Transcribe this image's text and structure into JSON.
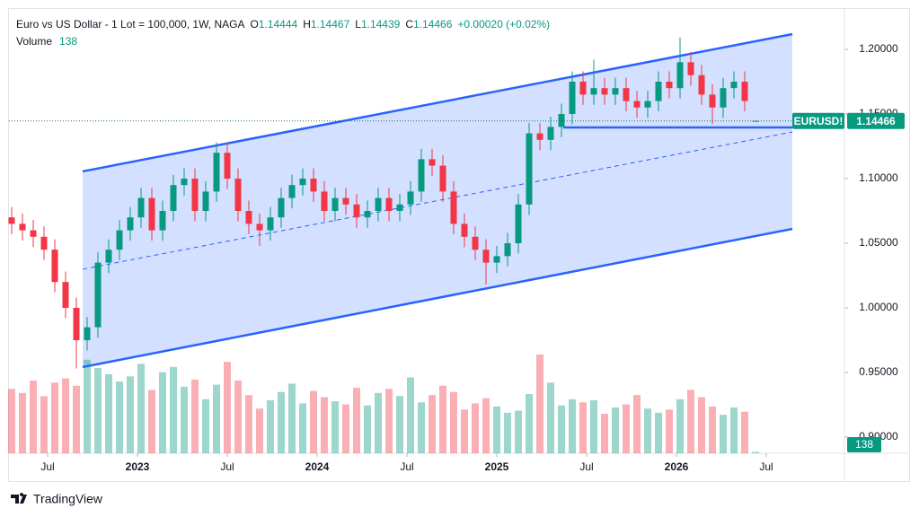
{
  "chart_data": {
    "type": "candlestick",
    "symbol": "Euro vs US Dollar - 1 Lot = 100,000, 1W, NAGA",
    "ohlc_labels": [
      "O",
      "H",
      "L",
      "C"
    ],
    "change": "+0.00020 (+0.02%)",
    "volume_label": "Volume",
    "tag": "EURUSD!",
    "up_color": "#089981",
    "down_color": "#f23645",
    "channel_color": "#2962ff",
    "x": [
      2022.3,
      2022.36,
      2022.42,
      2022.48,
      2022.54,
      2022.6,
      2022.66,
      2022.72,
      2022.78,
      2022.84,
      2022.9,
      2022.96,
      2023.02,
      2023.08,
      2023.14,
      2023.2,
      2023.26,
      2023.32,
      2023.38,
      2023.44,
      2023.5,
      2023.56,
      2023.62,
      2023.68,
      2023.74,
      2023.8,
      2023.86,
      2023.92,
      2023.98,
      2024.04,
      2024.1,
      2024.16,
      2024.22,
      2024.28,
      2024.34,
      2024.4,
      2024.46,
      2024.52,
      2024.58,
      2024.64,
      2024.7,
      2024.76,
      2024.82,
      2024.88,
      2024.94,
      2025.0,
      2025.06,
      2025.12,
      2025.18,
      2025.24,
      2025.3,
      2025.36,
      2025.42,
      2025.48,
      2025.54,
      2025.6,
      2025.66,
      2025.72,
      2025.78,
      2025.84,
      2025.9,
      2025.96,
      2026.02,
      2026.08,
      2026.14,
      2026.2,
      2026.26,
      2026.32,
      2026.38,
      2026.44
    ],
    "open": [
      1.07,
      1.065,
      1.06,
      1.055,
      1.045,
      1.02,
      1.0,
      0.975,
      0.985,
      1.035,
      1.045,
      1.06,
      1.07,
      1.085,
      1.06,
      1.075,
      1.095,
      1.1,
      1.075,
      1.09,
      1.12,
      1.1,
      1.075,
      1.065,
      1.06,
      1.07,
      1.085,
      1.095,
      1.1,
      1.09,
      1.075,
      1.085,
      1.08,
      1.07,
      1.075,
      1.085,
      1.075,
      1.08,
      1.09,
      1.115,
      1.11,
      1.09,
      1.065,
      1.055,
      1.045,
      1.035,
      1.04,
      1.05,
      1.08,
      1.135,
      1.13,
      1.14,
      1.15,
      1.175,
      1.165,
      1.17,
      1.165,
      1.17,
      1.16,
      1.155,
      1.16,
      1.175,
      1.17,
      1.19,
      1.18,
      1.165,
      1.155,
      1.17,
      1.175,
      1.14444
    ],
    "high": [
      1.078,
      1.073,
      1.068,
      1.063,
      1.053,
      1.028,
      1.008,
      0.993,
      1.043,
      1.053,
      1.068,
      1.078,
      1.093,
      1.093,
      1.083,
      1.103,
      1.108,
      1.108,
      1.098,
      1.128,
      1.128,
      1.108,
      1.083,
      1.073,
      1.078,
      1.093,
      1.103,
      1.108,
      1.108,
      1.098,
      1.093,
      1.093,
      1.088,
      1.083,
      1.093,
      1.093,
      1.088,
      1.098,
      1.123,
      1.123,
      1.118,
      1.098,
      1.073,
      1.063,
      1.053,
      1.048,
      1.058,
      1.088,
      1.143,
      1.143,
      1.148,
      1.158,
      1.183,
      1.183,
      1.192,
      1.178,
      1.178,
      1.178,
      1.168,
      1.168,
      1.183,
      1.183,
      1.209,
      1.198,
      1.188,
      1.173,
      1.178,
      1.183,
      1.183,
      1.14467
    ],
    "low": [
      1.057,
      1.052,
      1.047,
      1.037,
      1.012,
      0.992,
      0.953,
      0.967,
      0.977,
      1.027,
      1.037,
      1.052,
      1.062,
      1.052,
      1.052,
      1.067,
      1.087,
      1.067,
      1.067,
      1.082,
      1.092,
      1.067,
      1.057,
      1.048,
      1.052,
      1.062,
      1.077,
      1.087,
      1.082,
      1.067,
      1.067,
      1.072,
      1.062,
      1.062,
      1.067,
      1.067,
      1.067,
      1.072,
      1.082,
      1.102,
      1.082,
      1.057,
      1.047,
      1.037,
      1.018,
      1.027,
      1.032,
      1.042,
      1.072,
      1.122,
      1.122,
      1.132,
      1.142,
      1.157,
      1.157,
      1.157,
      1.157,
      1.152,
      1.147,
      1.147,
      1.152,
      1.162,
      1.162,
      1.172,
      1.157,
      1.142,
      1.147,
      1.162,
      1.152,
      1.14439
    ],
    "close": [
      1.065,
      1.06,
      1.055,
      1.045,
      1.02,
      1.0,
      0.975,
      0.985,
      1.035,
      1.045,
      1.06,
      1.07,
      1.085,
      1.06,
      1.075,
      1.095,
      1.1,
      1.075,
      1.09,
      1.12,
      1.1,
      1.075,
      1.065,
      1.06,
      1.07,
      1.085,
      1.095,
      1.1,
      1.09,
      1.075,
      1.085,
      1.08,
      1.07,
      1.075,
      1.085,
      1.075,
      1.08,
      1.09,
      1.115,
      1.11,
      1.09,
      1.065,
      1.055,
      1.045,
      1.035,
      1.04,
      1.05,
      1.08,
      1.135,
      1.13,
      1.14,
      1.15,
      1.175,
      1.165,
      1.17,
      1.165,
      1.17,
      1.16,
      1.155,
      1.16,
      1.175,
      1.17,
      1.19,
      1.18,
      1.165,
      1.155,
      1.17,
      1.175,
      1.16,
      1.14466
    ],
    "volume": [
      6200,
      5800,
      7000,
      5500,
      6800,
      7200,
      6500,
      9000,
      8200,
      7600,
      6900,
      7400,
      8600,
      6100,
      7800,
      8300,
      6400,
      7100,
      5200,
      6600,
      8800,
      7000,
      5600,
      4300,
      5100,
      5900,
      6700,
      4800,
      6000,
      5400,
      5000,
      4700,
      6300,
      4600,
      5800,
      6200,
      5500,
      7300,
      4900,
      5600,
      6500,
      5900,
      4200,
      4800,
      5300,
      4500,
      3900,
      4100,
      5700,
      9500,
      6800,
      4600,
      5200,
      4900,
      5100,
      3800,
      4400,
      4700,
      5600,
      4300,
      3900,
      4200,
      5200,
      6100,
      5400,
      4500,
      3700,
      4400,
      4000,
      138
    ],
    "channel": {
      "upper": [
        [
          2022.695,
          1.1056
        ],
        [
          2026.645,
          1.2118
        ]
      ],
      "middle": [
        [
          2022.695,
          1.0299
        ],
        [
          2026.645,
          1.1361
        ]
      ],
      "lower": [
        [
          2022.695,
          0.9542
        ],
        [
          2026.645,
          1.0611
        ]
      ]
    },
    "level": [
      [
        2025.37,
        1.1396
      ],
      [
        2026.645,
        1.1396
      ]
    ],
    "xlim": [
      2022.285,
      2026.935
    ],
    "xticks": [
      {
        "value": 2022.5,
        "label": "Jul"
      },
      2023,
      {
        "value": 2023.5,
        "label": "Jul"
      },
      2024,
      {
        "value": 2024.5,
        "label": "Jul"
      },
      2025,
      {
        "value": 2025.5,
        "label": "Jul"
      },
      2026,
      {
        "value": 2026.5,
        "label": "Jul"
      }
    ],
    "ylim": [
      0.8875,
      1.23125
    ],
    "yticks": [
      {
        "value": 0.9,
        "label": "0.90000"
      },
      {
        "value": 0.95,
        "label": "0.95000"
      },
      {
        "value": 1.0,
        "label": "1.00000"
      },
      {
        "value": 1.05,
        "label": "1.05000"
      },
      {
        "value": 1.1,
        "label": "1.10000"
      },
      {
        "value": 1.15,
        "label": "1.15000"
      },
      {
        "value": 1.2,
        "label": "1.20000"
      }
    ]
  },
  "footer": "TradingView"
}
